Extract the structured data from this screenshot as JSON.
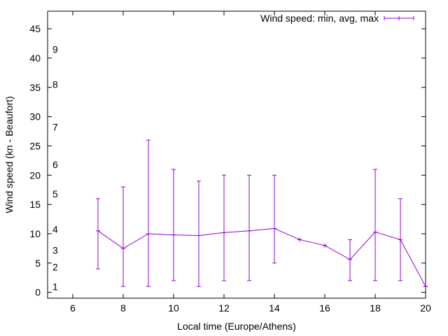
{
  "chart_data": {
    "type": "line",
    "title": "",
    "xlabel": "Local time (Europe/Athens)",
    "ylabel": "Wind speed (kn - Beaufort)",
    "xlim": [
      5,
      20
    ],
    "ylim": [
      -1,
      48
    ],
    "xticks": [
      6,
      8,
      10,
      12,
      14,
      16,
      18,
      20
    ],
    "yticks": [
      0,
      5,
      10,
      15,
      20,
      25,
      30,
      35,
      40,
      45
    ],
    "grid": false,
    "legend": "top-right",
    "legend_label": "Wind speed: min, avg, max",
    "series_color": "#9400d3",
    "beaufort_labels": [
      {
        "label": "1",
        "value": 1
      },
      {
        "label": "2",
        "value": 4.3
      },
      {
        "label": "3",
        "value": 7.2
      },
      {
        "label": "4",
        "value": 10.8
      },
      {
        "label": "5",
        "value": 16.8
      },
      {
        "label": "6",
        "value": 21.8
      },
      {
        "label": "7",
        "value": 28.2
      },
      {
        "label": "8",
        "value": 35.5
      },
      {
        "label": "9",
        "value": 41.5
      }
    ],
    "series": [
      {
        "name": "Wind speed: min, avg, max",
        "points": [
          {
            "x": 7,
            "min": 4,
            "avg": 10.5,
            "max": 16
          },
          {
            "x": 8,
            "min": 1,
            "avg": 7.5,
            "max": 18
          },
          {
            "x": 9,
            "min": 1,
            "avg": 10,
            "max": 26
          },
          {
            "x": 10,
            "min": 2,
            "avg": 9.8,
            "max": 21
          },
          {
            "x": 11,
            "min": 1,
            "avg": 9.7,
            "max": 19
          },
          {
            "x": 12,
            "min": 2,
            "avg": 10.2,
            "max": 20
          },
          {
            "x": 13,
            "min": 2,
            "avg": 10.5,
            "max": 20
          },
          {
            "x": 14,
            "min": 5,
            "avg": 10.9,
            "max": 20
          },
          {
            "x": 15,
            "min": 9,
            "avg": 9,
            "max": 9
          },
          {
            "x": 16,
            "min": 8,
            "avg": 8,
            "max": 8
          },
          {
            "x": 17,
            "min": 2,
            "avg": 5.6,
            "max": 9
          },
          {
            "x": 18,
            "min": 2,
            "avg": 10.3,
            "max": 21
          },
          {
            "x": 19,
            "min": 2,
            "avg": 9,
            "max": 16
          },
          {
            "x": 20,
            "min": 1,
            "avg": 1,
            "max": 1
          }
        ]
      }
    ]
  }
}
